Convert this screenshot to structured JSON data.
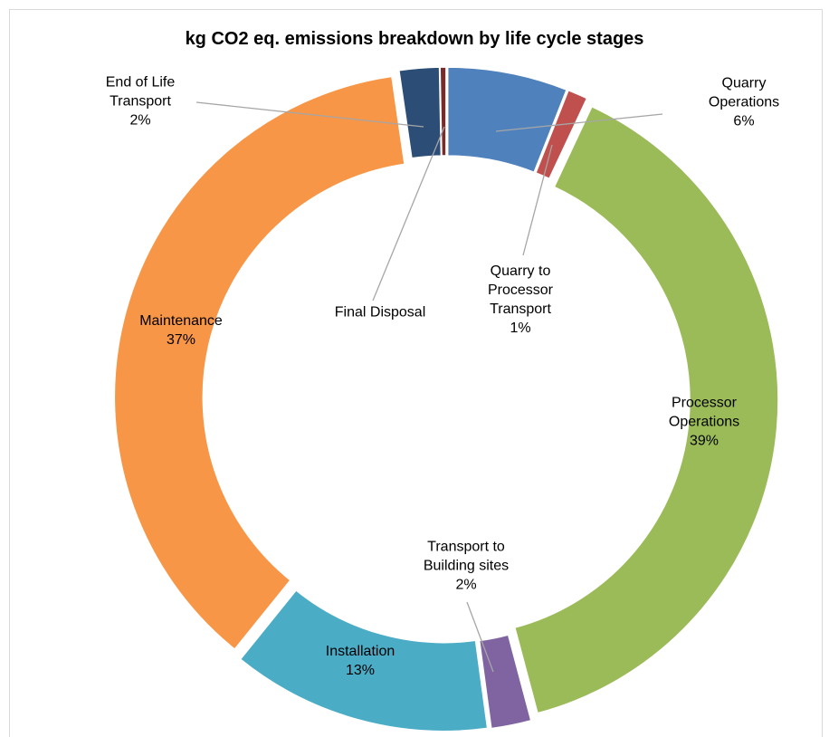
{
  "chart_data": {
    "type": "donut",
    "title": "kg CO2 eq. emissions breakdown by life cycle stages",
    "categories": [
      "Quarry\nOperations",
      "Quarry to\nProcessor\nTransport",
      "Processor\nOperations",
      "Transport to\nBuilding sites",
      "Installation",
      "Maintenance",
      "End of Life\nTransport",
      "Final Disposal"
    ],
    "values": [
      6,
      1,
      39,
      2,
      13,
      37,
      2,
      0.3
    ],
    "value_labels": [
      "6%",
      "1%",
      "39%",
      "2%",
      "13%",
      "37%",
      "2%",
      null
    ],
    "colors": [
      "#4f81bd",
      "#c0504d",
      "#9bbb59",
      "#8064a2",
      "#4bacc6",
      "#f79646",
      "#2c4d75",
      "#772c2a"
    ]
  }
}
